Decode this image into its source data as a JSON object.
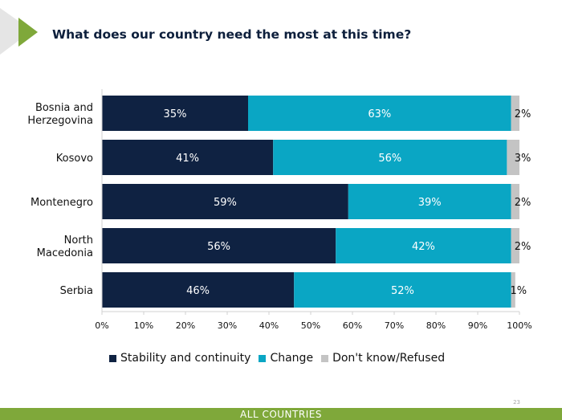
{
  "header": {
    "title": "What does our country need the most at this time?"
  },
  "colors": {
    "accent_green": "#7fa83a",
    "arrow_gray": "#e5e5e5"
  },
  "chart_data": {
    "type": "bar",
    "orientation": "horizontal",
    "stacked": true,
    "categories": [
      "Bosnia and Herzegovina",
      "Kosovo",
      "Montenegro",
      "North Macedonia",
      "Serbia"
    ],
    "category_lines": [
      [
        "Bosnia and",
        "Herzegovina"
      ],
      [
        "Kosovo"
      ],
      [
        "Montenegro"
      ],
      [
        "North",
        "Macedonia"
      ],
      [
        "Serbia"
      ]
    ],
    "series": [
      {
        "name": "Stability and continuity",
        "values": [
          35,
          41,
          59,
          56,
          46
        ],
        "labels": [
          "35%",
          "41%",
          "59%",
          "56%",
          "46%"
        ],
        "color": "#0f2242",
        "label_color": "#ffffff"
      },
      {
        "name": "Change",
        "values": [
          63,
          56,
          39,
          42,
          52
        ],
        "labels": [
          "63%",
          "56%",
          "39%",
          "42%",
          "52%"
        ],
        "color": "#0aa6c4",
        "label_color": "#ffffff"
      },
      {
        "name": "Don't know/Refused",
        "values": [
          2,
          3,
          2,
          2,
          1
        ],
        "labels": [
          "2%",
          "3%",
          "2%",
          "2%",
          "1%"
        ],
        "color": "#c4c4c4",
        "label_color": "#111111"
      }
    ],
    "xlim": [
      0,
      100
    ],
    "xticks": [
      "0%",
      "10%",
      "20%",
      "30%",
      "40%",
      "50%",
      "60%",
      "70%",
      "80%",
      "90%",
      "100%"
    ],
    "grid": false,
    "legend_position": "bottom"
  },
  "footer": {
    "page_number": "23",
    "label": "ALL COUNTRIES"
  }
}
